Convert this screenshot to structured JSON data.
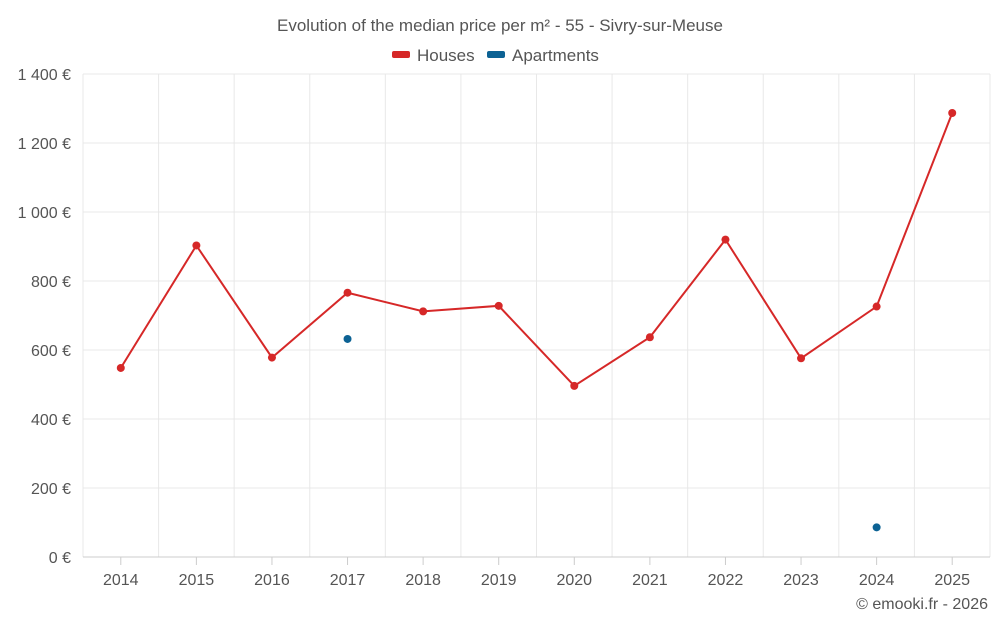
{
  "chart_data": {
    "type": "line",
    "title": "Evolution of the median price per m² - 55 - Sivry-sur-Meuse",
    "categories": [
      "2014",
      "2015",
      "2016",
      "2017",
      "2018",
      "2019",
      "2020",
      "2021",
      "2022",
      "2023",
      "2024",
      "2025"
    ],
    "series": [
      {
        "name": "Houses",
        "color": "#d62828",
        "values": [
          548,
          903,
          578,
          766,
          712,
          728,
          496,
          637,
          920,
          576,
          726,
          1287
        ]
      },
      {
        "name": "Apartments",
        "color": "#0c6294",
        "values": [
          null,
          null,
          null,
          632,
          null,
          null,
          null,
          null,
          null,
          null,
          86,
          null
        ]
      }
    ],
    "ylim": [
      0,
      1400
    ],
    "yticks": [
      0,
      200,
      400,
      600,
      800,
      1000,
      1200,
      1400
    ],
    "ytick_labels": [
      "0 €",
      "200 €",
      "400 €",
      "600 €",
      "800 €",
      "1 000 €",
      "1 200 €",
      "1 400 €"
    ],
    "legend_position": "top-center",
    "grid": true
  },
  "credit": "© emooki.fr - 2026"
}
